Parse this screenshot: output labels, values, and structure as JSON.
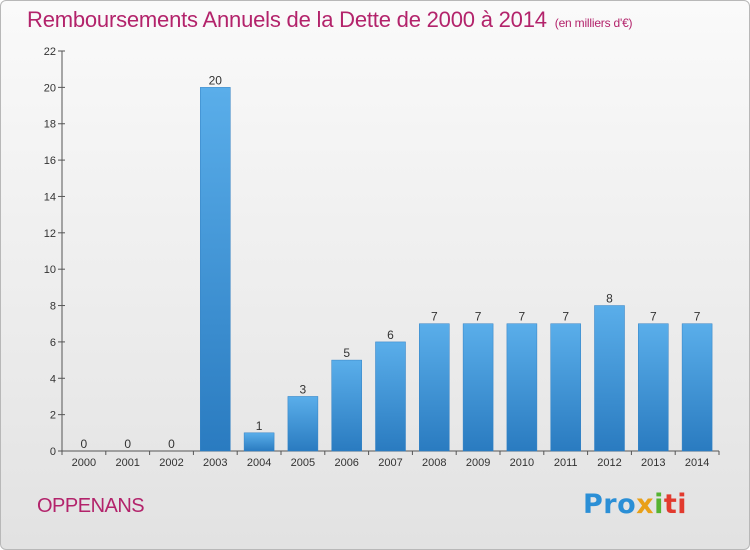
{
  "chart_data": {
    "type": "bar",
    "title": "Remboursements Annuels de la Dette de 2000 à 2014",
    "subtitle": "(en milliers d'€)",
    "categories": [
      "2000",
      "2001",
      "2002",
      "2003",
      "2004",
      "2005",
      "2006",
      "2007",
      "2008",
      "2009",
      "2010",
      "2011",
      "2012",
      "2013",
      "2014"
    ],
    "values": [
      0,
      0,
      0,
      20,
      1,
      3,
      5,
      6,
      7,
      7,
      7,
      7,
      8,
      7,
      7
    ],
    "ylim": [
      0,
      22
    ],
    "yticks": [
      0,
      2,
      4,
      6,
      8,
      10,
      12,
      14,
      16,
      18,
      20,
      22
    ],
    "grid": false,
    "bar_color": "#3f98da"
  },
  "commune": "OPPENANS",
  "logo": {
    "parts": [
      "Pro",
      "x",
      "i",
      "ti"
    ],
    "colors": [
      "#2b8fd6",
      "#e9a019",
      "#55b331",
      "#e23a2e"
    ]
  }
}
